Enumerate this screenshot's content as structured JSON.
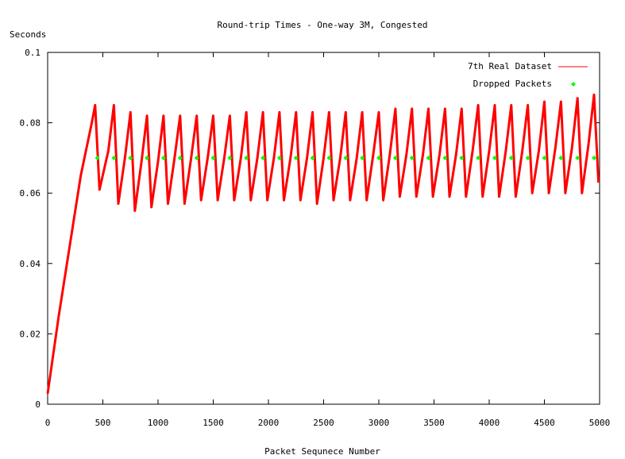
{
  "chart_data": {
    "type": "line",
    "title": "Round-trip Times - One-way 3M, Congested",
    "xlabel": "Packet Sequnece Number",
    "ylabel": "Seconds",
    "xlim": [
      0,
      5000
    ],
    "ylim": [
      0,
      0.1
    ],
    "x_ticks": [
      0,
      500,
      1000,
      1500,
      2000,
      2500,
      3000,
      3500,
      4000,
      4500,
      5000
    ],
    "x_tick_labels": [
      "0",
      "500",
      "1000",
      "1500",
      "2000",
      "2500",
      "3000",
      "3500",
      "4000",
      "4500",
      "5000"
    ],
    "y_ticks": [
      0,
      0.02,
      0.04,
      0.06,
      0.08,
      0.1
    ],
    "y_tick_labels": [
      "0",
      "0.02",
      "0.04",
      "0.06",
      "0.08",
      "0.1"
    ],
    "grid": false,
    "legend_position": "top-right",
    "series": [
      {
        "name": "7th Real Dataset",
        "color": "#ff0000",
        "style": "line",
        "x": [
          0,
          100,
          200,
          300,
          400,
          430,
          470,
          550,
          600,
          640,
          700,
          750,
          790,
          850,
          900,
          940,
          1000,
          1050,
          1090,
          1150,
          1200,
          1240,
          1300,
          1350,
          1390,
          1450,
          1500,
          1540,
          1600,
          1650,
          1690,
          1750,
          1800,
          1840,
          1900,
          1950,
          1990,
          2050,
          2100,
          2140,
          2200,
          2250,
          2290,
          2350,
          2400,
          2440,
          2500,
          2550,
          2590,
          2650,
          2700,
          2740,
          2800,
          2850,
          2890,
          2950,
          3000,
          3040,
          3100,
          3150,
          3190,
          3250,
          3300,
          3340,
          3400,
          3450,
          3490,
          3550,
          3600,
          3640,
          3700,
          3750,
          3790,
          3850,
          3900,
          3940,
          4000,
          4050,
          4090,
          4150,
          4200,
          4240,
          4300,
          4350,
          4390,
          4450,
          4500,
          4540,
          4600,
          4650,
          4690,
          4750,
          4800,
          4840,
          4900,
          4950,
          4990
        ],
        "y": [
          0.003,
          0.025,
          0.045,
          0.065,
          0.08,
          0.085,
          0.061,
          0.072,
          0.085,
          0.057,
          0.07,
          0.083,
          0.055,
          0.069,
          0.082,
          0.056,
          0.069,
          0.082,
          0.057,
          0.07,
          0.082,
          0.057,
          0.07,
          0.082,
          0.058,
          0.07,
          0.082,
          0.058,
          0.07,
          0.082,
          0.058,
          0.07,
          0.083,
          0.058,
          0.07,
          0.083,
          0.058,
          0.07,
          0.083,
          0.058,
          0.07,
          0.083,
          0.058,
          0.07,
          0.083,
          0.057,
          0.07,
          0.083,
          0.058,
          0.07,
          0.083,
          0.058,
          0.07,
          0.083,
          0.058,
          0.071,
          0.083,
          0.058,
          0.071,
          0.084,
          0.059,
          0.071,
          0.084,
          0.059,
          0.071,
          0.084,
          0.059,
          0.071,
          0.084,
          0.059,
          0.071,
          0.084,
          0.059,
          0.072,
          0.085,
          0.059,
          0.072,
          0.085,
          0.059,
          0.072,
          0.085,
          0.059,
          0.072,
          0.085,
          0.06,
          0.072,
          0.086,
          0.06,
          0.073,
          0.086,
          0.06,
          0.073,
          0.087,
          0.06,
          0.074,
          0.088,
          0.063
        ]
      },
      {
        "name": "Dropped Packets",
        "color": "#00ff00",
        "style": "points",
        "x": [
          450,
          600,
          750,
          900,
          1050,
          1200,
          1350,
          1500,
          1650,
          1800,
          1950,
          2100,
          2250,
          2400,
          2550,
          2700,
          2850,
          3000,
          3150,
          3300,
          3450,
          3600,
          3750,
          3900,
          4050,
          4200,
          4350,
          4500,
          4650,
          4800,
          4950
        ],
        "y": [
          0.07,
          0.07,
          0.07,
          0.07,
          0.07,
          0.07,
          0.07,
          0.07,
          0.07,
          0.07,
          0.07,
          0.07,
          0.07,
          0.07,
          0.07,
          0.07,
          0.07,
          0.07,
          0.07,
          0.07,
          0.07,
          0.07,
          0.07,
          0.07,
          0.07,
          0.07,
          0.07,
          0.07,
          0.07,
          0.07,
          0.07
        ]
      }
    ]
  }
}
